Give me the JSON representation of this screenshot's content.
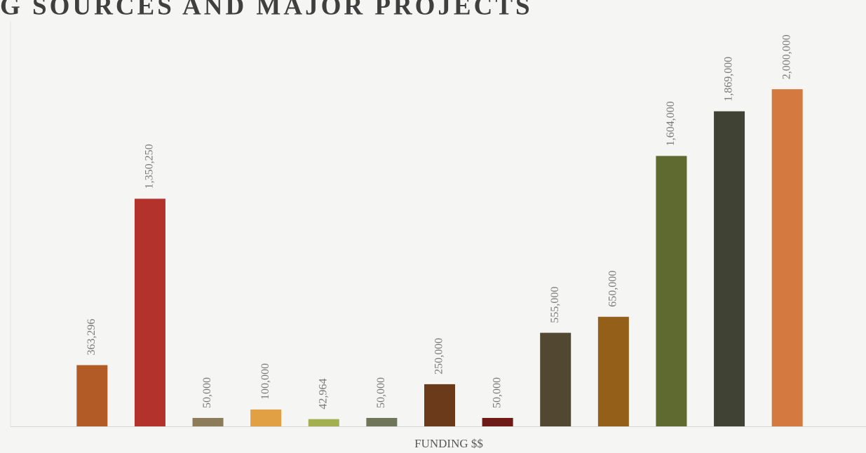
{
  "chart_data": {
    "type": "bar",
    "title": "G SOURCES AND MAJOR PROJECTS",
    "x_label": "FUNDING $$",
    "categories": [
      null,
      null,
      null,
      null,
      null,
      null,
      null,
      null,
      null,
      null,
      null,
      null,
      null
    ],
    "values": [
      363296,
      1350250,
      50000,
      100000,
      42964,
      50000,
      250000,
      50000,
      555000,
      650000,
      1604000,
      1869000,
      2000000
    ],
    "value_labels": [
      "363,296",
      "1,350,250",
      "50,000",
      "100,000",
      "42,964",
      "50,000",
      "250,000",
      "50,000",
      "555,000",
      "650,000",
      "1,604,000",
      "1,869,000",
      "2,000,000"
    ],
    "colors": [
      "#b35b27",
      "#b3322b",
      "#8c7c5a",
      "#e1a043",
      "#a3b04f",
      "#6e7558",
      "#6b3a1a",
      "#6e1a17",
      "#524832",
      "#935f19",
      "#5f6a30",
      "#404333",
      "#d47a40"
    ],
    "ylim": [
      0,
      2500000
    ]
  }
}
